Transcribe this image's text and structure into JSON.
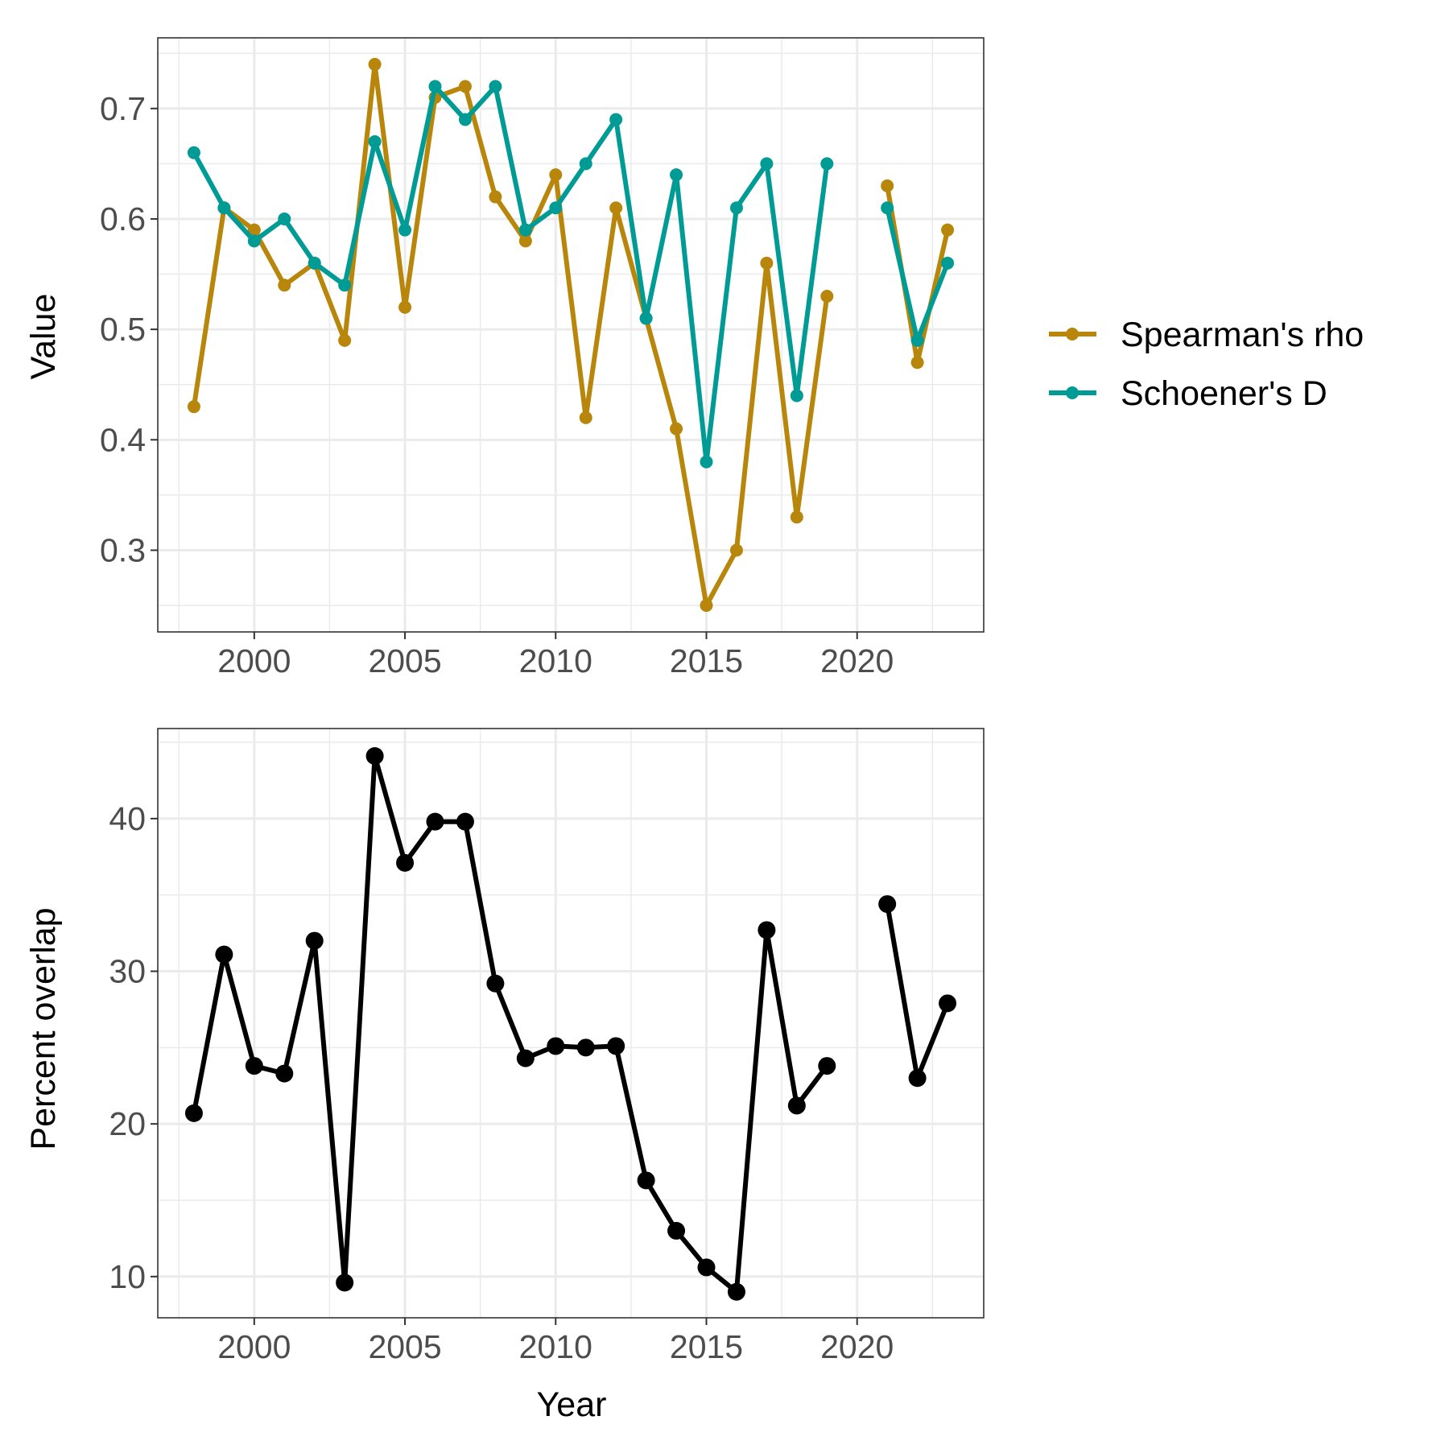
{
  "chart_data": [
    {
      "type": "line",
      "title": "",
      "xlabel": "",
      "ylabel": "Value",
      "xlim": [
        1996.8,
        2024.2
      ],
      "ylim": [
        0.226,
        0.764
      ],
      "x_major_ticks": [
        2000,
        2005,
        2010,
        2015,
        2020
      ],
      "x_tick_labels": [
        "2000",
        "2005",
        "2010",
        "2015",
        "2020"
      ],
      "x_minor_ticks": [
        1997.5,
        2002.5,
        2007.5,
        2012.5,
        2017.5,
        2022.5
      ],
      "y_major_ticks": [
        0.3,
        0.4,
        0.5,
        0.6,
        0.7
      ],
      "y_tick_labels": [
        "0.3",
        "0.4",
        "0.5",
        "0.6",
        "0.7"
      ],
      "y_minor_ticks": [
        0.25,
        0.35,
        0.45,
        0.55,
        0.65,
        0.75
      ],
      "grid": true,
      "legend": "right",
      "x": [
        1998,
        1999,
        2000,
        2001,
        2002,
        2003,
        2004,
        2005,
        2006,
        2007,
        2008,
        2009,
        2010,
        2011,
        2012,
        2013,
        2014,
        2015,
        2016,
        2017,
        2018,
        2019,
        2020,
        2021,
        2022,
        2023
      ],
      "series": [
        {
          "name": "Spearman's rho",
          "color": "#B8860B",
          "values": [
            0.43,
            0.61,
            0.59,
            0.54,
            0.56,
            0.49,
            0.74,
            0.52,
            0.71,
            0.72,
            0.62,
            0.58,
            0.64,
            0.42,
            0.61,
            0.51,
            0.41,
            0.25,
            0.3,
            0.56,
            0.33,
            0.53,
            null,
            0.63,
            0.47,
            0.59
          ]
        },
        {
          "name": "Schoener's D",
          "color": "#009B95",
          "values": [
            0.66,
            0.61,
            0.58,
            0.6,
            0.56,
            0.54,
            0.67,
            0.59,
            0.72,
            0.69,
            0.72,
            0.59,
            0.61,
            0.65,
            0.69,
            0.51,
            0.64,
            0.38,
            0.61,
            0.65,
            0.44,
            0.65,
            null,
            0.61,
            0.49,
            0.56
          ]
        }
      ]
    },
    {
      "type": "line",
      "title": "",
      "xlabel": "Year",
      "ylabel": "Percent overlap",
      "xlim": [
        1996.8,
        2024.2
      ],
      "ylim": [
        7.3,
        45.9
      ],
      "x_major_ticks": [
        2000,
        2005,
        2010,
        2015,
        2020
      ],
      "x_tick_labels": [
        "2000",
        "2005",
        "2010",
        "2015",
        "2020"
      ],
      "x_minor_ticks": [
        1997.5,
        2002.5,
        2007.5,
        2012.5,
        2017.5,
        2022.5
      ],
      "y_major_ticks": [
        10,
        20,
        30,
        40
      ],
      "y_tick_labels": [
        "10",
        "20",
        "30",
        "40"
      ],
      "y_minor_ticks": [
        15,
        25,
        35,
        45
      ],
      "grid": true,
      "legend": "none",
      "x": [
        1998,
        1999,
        2000,
        2001,
        2002,
        2003,
        2004,
        2005,
        2006,
        2007,
        2008,
        2009,
        2010,
        2011,
        2012,
        2013,
        2014,
        2015,
        2016,
        2017,
        2018,
        2019,
        2020,
        2021,
        2022,
        2023
      ],
      "series": [
        {
          "color": "#000000",
          "values": [
            20.7,
            31.1,
            23.8,
            23.3,
            32.0,
            9.6,
            44.1,
            37.1,
            39.8,
            39.8,
            29.2,
            24.3,
            25.1,
            25.0,
            25.1,
            16.3,
            13.0,
            10.6,
            9.0,
            32.7,
            21.2,
            23.8,
            null,
            34.4,
            23.0,
            27.9
          ]
        }
      ]
    }
  ]
}
